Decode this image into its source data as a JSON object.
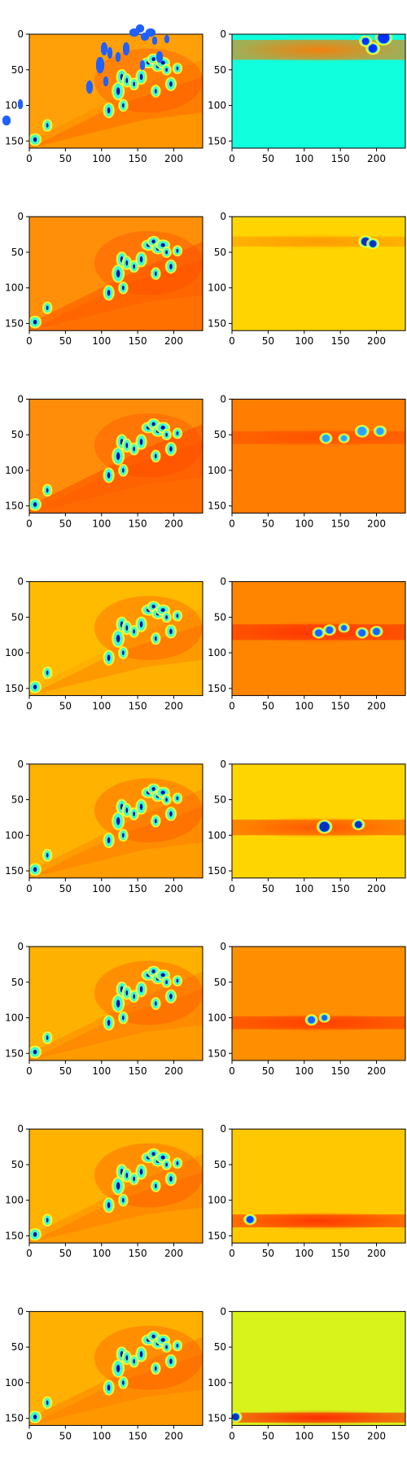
{
  "figure": {
    "rows": 8,
    "cols": 2,
    "description": "Grid of 16 heatmap panels rendered with a jet colormap"
  },
  "chart_data": {
    "type": "heatmap",
    "colormap": "jet",
    "xlim": [
      0,
      240
    ],
    "ylim": [
      160,
      0
    ],
    "xticks": [
      0,
      50,
      100,
      150,
      200
    ],
    "xtick_labels": [
      "0",
      "50",
      "100",
      "150",
      "200"
    ],
    "yticks": [
      0,
      50,
      100,
      150
    ],
    "ytick_labels": [
      "0",
      "50",
      "100",
      "150"
    ],
    "blobs": [
      [
        110,
        107,
        4,
        8
      ],
      [
        123,
        80,
        5,
        10
      ],
      [
        128,
        60,
        4,
        8
      ],
      [
        135,
        65,
        3,
        7
      ],
      [
        145,
        70,
        3,
        6
      ],
      [
        155,
        60,
        4,
        8
      ],
      [
        165,
        40,
        6,
        5
      ],
      [
        172,
        35,
        5,
        5
      ],
      [
        178,
        45,
        5,
        5
      ],
      [
        185,
        40,
        6,
        5
      ],
      [
        190,
        50,
        3,
        5
      ],
      [
        196,
        70,
        4,
        7
      ],
      [
        205,
        48,
        3,
        5
      ],
      [
        175,
        80,
        3,
        6
      ],
      [
        130,
        100,
        3,
        6
      ],
      [
        25,
        128,
        3,
        6
      ],
      [
        8,
        148,
        5,
        6
      ]
    ],
    "panels": [
      {
        "id": "r1-left",
        "bg": "#ff9500",
        "variant": "input",
        "blob_color": "#2060ff",
        "bright": 0
      },
      {
        "id": "r1-right",
        "bg": "#10ffdc",
        "variant": "band",
        "band_y": 8,
        "band_h": 28,
        "band_color": "#ff7a00",
        "spots": [
          [
            210,
            5,
            8
          ],
          [
            195,
            20,
            6
          ],
          [
            185,
            10,
            5
          ]
        ],
        "spot_color": "#0030ff"
      },
      {
        "id": "r2-left",
        "bg": "#ff7000",
        "variant": "input",
        "blob_color": "#40a0ff",
        "bright": 0
      },
      {
        "id": "r2-right",
        "bg": "#ffd400",
        "variant": "band",
        "band_y": 28,
        "band_h": 14,
        "band_color": "#ff9a00",
        "spots": [
          [
            185,
            35,
            6
          ],
          [
            195,
            38,
            5
          ]
        ],
        "spot_color": "#1030c0"
      },
      {
        "id": "r3-left",
        "bg": "#ff6a00",
        "variant": "input",
        "blob_color": "#3090ff",
        "bright": 0
      },
      {
        "id": "r3-right",
        "bg": "#ff7d00",
        "variant": "band",
        "band_y": 45,
        "band_h": 18,
        "band_color": "#ff5000",
        "spots": [
          [
            130,
            55,
            5
          ],
          [
            155,
            55,
            4
          ],
          [
            180,
            45,
            6
          ],
          [
            205,
            45,
            5
          ]
        ],
        "spot_color": "#30a0ff"
      },
      {
        "id": "r4-left",
        "bg": "#ffb000",
        "variant": "input",
        "blob_color": "#2080ff",
        "bright": 1
      },
      {
        "id": "r4-right",
        "bg": "#ff8500",
        "variant": "band",
        "band_y": 60,
        "band_h": 22,
        "band_color": "#ff3000",
        "spots": [
          [
            120,
            72,
            5
          ],
          [
            135,
            68,
            5
          ],
          [
            155,
            65,
            4
          ],
          [
            180,
            72,
            5
          ],
          [
            200,
            70,
            5
          ]
        ],
        "spot_color": "#2060ff"
      },
      {
        "id": "r5-left",
        "bg": "#ff9c00",
        "variant": "input",
        "blob_color": "#2060ff",
        "bright": 1
      },
      {
        "id": "r5-right",
        "bg": "#ffd500",
        "variant": "band",
        "band_y": 78,
        "band_h": 22,
        "band_color": "#ff5000",
        "spots": [
          [
            128,
            88,
            7
          ],
          [
            175,
            85,
            5
          ]
        ],
        "spot_color": "#0030c0"
      },
      {
        "id": "r6-left",
        "bg": "#ff9a00",
        "variant": "input",
        "blob_color": "#2060ff",
        "bright": 1
      },
      {
        "id": "r6-right",
        "bg": "#ff8f00",
        "variant": "band",
        "band_y": 98,
        "band_h": 18,
        "band_color": "#ff3a00",
        "spots": [
          [
            110,
            103,
            5
          ],
          [
            128,
            100,
            4
          ]
        ],
        "spot_color": "#2060ff"
      },
      {
        "id": "r7-left",
        "bg": "#ff9c00",
        "variant": "input",
        "blob_color": "#2060ff",
        "bright": 1
      },
      {
        "id": "r7-right",
        "bg": "#ffc800",
        "variant": "band",
        "band_y": 120,
        "band_h": 18,
        "band_color": "#ff3000",
        "spots": [
          [
            25,
            127,
            5
          ]
        ],
        "spot_color": "#1040ff"
      },
      {
        "id": "r8-left",
        "bg": "#ff9800",
        "variant": "input",
        "blob_color": "#2060ff",
        "bright": 1
      },
      {
        "id": "r8-right",
        "bg": "#d8f21c",
        "variant": "band",
        "band_y": 142,
        "band_h": 14,
        "band_color": "#ff2000",
        "spots": [
          [
            5,
            148,
            5
          ]
        ],
        "spot_color": "#1030c0"
      }
    ]
  }
}
